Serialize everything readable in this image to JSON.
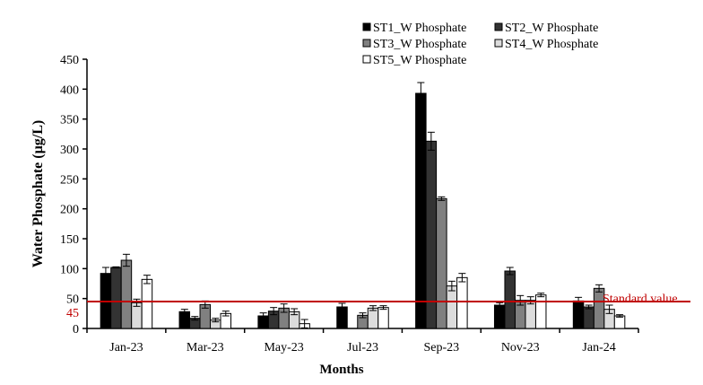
{
  "chart_data": {
    "type": "bar",
    "title": "",
    "xlabel": "Months",
    "ylabel": "Water Phosphate (µg/L)",
    "ylim": [
      0,
      450
    ],
    "yticks": [
      0,
      50,
      100,
      150,
      200,
      250,
      300,
      350,
      400,
      450
    ],
    "categories": [
      "Jan-23",
      "Mar-23",
      "May-23",
      "Jul-23",
      "Sep-23",
      "Nov-23",
      "Jan-24"
    ],
    "legend_position": "top-right",
    "grid": false,
    "series": [
      {
        "name": "ST1_W Phosphate",
        "color": "#000000",
        "values": [
          92,
          28,
          21,
          36,
          393,
          39,
          46
        ],
        "errors": [
          10,
          4,
          5,
          6,
          18,
          4,
          6
        ]
      },
      {
        "name": "ST2_W Phosphate",
        "color": "#333333",
        "values": [
          102,
          17,
          29,
          0,
          313,
          96,
          36
        ],
        "errors": [
          1,
          3,
          6,
          0,
          15,
          6,
          3
        ]
      },
      {
        "name": "ST3_W Phosphate",
        "color": "#808080",
        "values": [
          114,
          40,
          34,
          22,
          217,
          47,
          67
        ],
        "errors": [
          10,
          6,
          7,
          4,
          3,
          8,
          6
        ]
      },
      {
        "name": "ST4_W Phosphate",
        "color": "#dcdcdc",
        "values": [
          43,
          14,
          28,
          34,
          71,
          47,
          32
        ],
        "errors": [
          6,
          3,
          5,
          4,
          8,
          6,
          7
        ]
      },
      {
        "name": "ST5_W Phosphate",
        "color": "#ffffff",
        "values": [
          82,
          25,
          8,
          35,
          85,
          56,
          21
        ],
        "errors": [
          7,
          4,
          7,
          3,
          7,
          3,
          2
        ]
      }
    ],
    "reference_line": {
      "value": 45,
      "label": "Standard value",
      "axis_label": "45",
      "color": "#c00000"
    }
  }
}
